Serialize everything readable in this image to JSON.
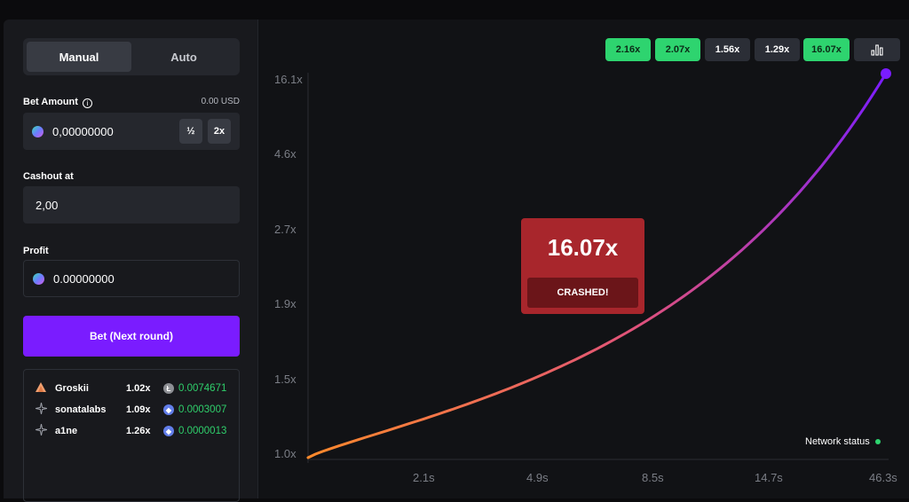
{
  "sidebar": {
    "tabs": [
      {
        "label": "Manual",
        "active": true
      },
      {
        "label": "Auto",
        "active": false
      }
    ],
    "bet_amount": {
      "label": "Bet Amount",
      "info_icon": "i",
      "usd": "0.00 USD",
      "value": "0,00000000",
      "half_label": "½",
      "double_label": "2x"
    },
    "cashout": {
      "label": "Cashout at",
      "value": "2,00"
    },
    "profit": {
      "label": "Profit",
      "value": "0.00000000"
    },
    "bet_button_label": "Bet (Next round)",
    "players": [
      {
        "name": "Groskii",
        "multiplier": "1.02x",
        "amount": "0.0074671",
        "avatar": "triangle-avatar-icon",
        "coin": "litecoin-icon",
        "coin_color": "#8d8f94",
        "coin_glyph": "Ł"
      },
      {
        "name": "sonatalabs",
        "multiplier": "1.09x",
        "amount": "0.0003007",
        "avatar": "sparkle-avatar-icon",
        "coin": "ethereum-icon",
        "coin_color": "#627eea",
        "coin_glyph": "◆"
      },
      {
        "name": "a1ne",
        "multiplier": "1.26x",
        "amount": "0.0000013",
        "avatar": "sparkle-avatar-icon",
        "coin": "ethereum-icon",
        "coin_color": "#627eea",
        "coin_glyph": "◆"
      }
    ]
  },
  "history": [
    {
      "value": "2.16x",
      "color": "green"
    },
    {
      "value": "2.07x",
      "color": "green"
    },
    {
      "value": "1.56x",
      "color": "dark"
    },
    {
      "value": "1.29x",
      "color": "dark"
    },
    {
      "value": "16.07x",
      "color": "green"
    }
  ],
  "chart_data": {
    "type": "line",
    "y_ticks": [
      "16.1x",
      "4.6x",
      "2.7x",
      "1.9x",
      "1.5x",
      "1.0x"
    ],
    "x_ticks": [
      "2.1s",
      "4.9s",
      "8.5s",
      "14.7s",
      "46.3s"
    ],
    "series": [
      {
        "x_end_s": 46.3,
        "y_end": 16.07,
        "y_start": 1.0,
        "color_start": "#ff8a2b",
        "color_end": "#7a1cff"
      }
    ],
    "grid": false
  },
  "crash": {
    "value": "16.07x",
    "label": "CRASHED!"
  },
  "network_status": "Network status",
  "colors": {
    "accent": "#7a1cff",
    "win": "#2ed46f",
    "crash": "#a8262c"
  }
}
